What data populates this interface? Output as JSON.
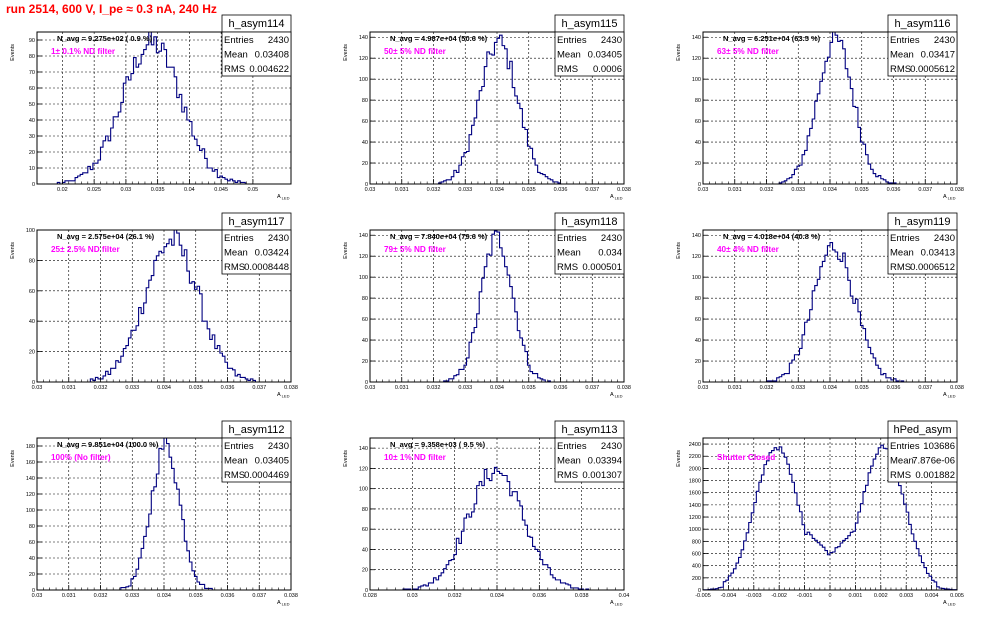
{
  "header": {
    "title": "run 2514,   600 V, I_pe ≈ 0.3 nA, 240 Hz"
  },
  "colors": {
    "title": "#ff0000",
    "hist": "#000080",
    "note": "#ff00ff",
    "grid": "#000000",
    "axis": "#000000"
  },
  "common": {
    "xlabel_main": "A",
    "xlabel_sub": "LED",
    "ylabel": "Events",
    "stat_labels": [
      "Entries",
      "Mean",
      "RMS"
    ]
  },
  "chart_data": [
    {
      "type": "bar",
      "title": "h_asym114",
      "annotation": "N_avg = 9.275e+02 ( 0.9 %)",
      "note": "1± 0.1% ND filter",
      "entries": "2430",
      "mean": "0.03408",
      "rms": "0.004622",
      "xlim": [
        0.016,
        0.056
      ],
      "xticks": [
        "0.02",
        "0.025",
        "0.03",
        "0.035",
        "0.04",
        "0.045",
        "0.05"
      ],
      "ylim": [
        0,
        95
      ],
      "yticks": [
        "0",
        "10",
        "20",
        "30",
        "40",
        "50",
        "60",
        "70",
        "80",
        "90"
      ],
      "dist": {
        "mean": 0.03408,
        "sigma": 0.004622,
        "peak": 88
      },
      "grid": true
    },
    {
      "type": "bar",
      "title": "h_asym115",
      "annotation": "N_avg = 4.987e+04 (50.6 %)",
      "note": "50± 5% ND filter",
      "entries": "2430",
      "mean": "0.03405",
      "rms": "0.0006",
      "xlim": [
        0.03,
        0.038
      ],
      "xticks": [
        "0.03",
        "0.031",
        "0.032",
        "0.033",
        "0.034",
        "0.035",
        "0.036",
        "0.037",
        "0.038"
      ],
      "ylim": [
        0,
        145
      ],
      "yticks": [
        "0",
        "20",
        "40",
        "60",
        "80",
        "100",
        "120",
        "140"
      ],
      "dist": {
        "mean": 0.03405,
        "sigma": 0.0006,
        "peak": 135
      },
      "grid": true
    },
    {
      "type": "bar",
      "title": "h_asym116",
      "annotation": "N_avg = 6.251e+04 (63.5 %)",
      "note": "63± 5% ND filter",
      "entries": "2430",
      "mean": "0.03417",
      "rms": "0.0005612",
      "xlim": [
        0.03,
        0.038
      ],
      "xticks": [
        "0.03",
        "0.031",
        "0.032",
        "0.033",
        "0.034",
        "0.035",
        "0.036",
        "0.037",
        "0.038"
      ],
      "ylim": [
        0,
        145
      ],
      "yticks": [
        "0",
        "20",
        "40",
        "60",
        "80",
        "100",
        "120",
        "140"
      ],
      "dist": {
        "mean": 0.03417,
        "sigma": 0.0005612,
        "peak": 138
      },
      "grid": true
    },
    {
      "type": "bar",
      "title": "h_asym117",
      "annotation": "N_avg = 2.575e+04 (26.1 %)",
      "note": "25± 2.5% ND filter",
      "entries": "2430",
      "mean": "0.03424",
      "rms": "0.0008448",
      "xlim": [
        0.03,
        0.038
      ],
      "xticks": [
        "0.03",
        "0.031",
        "0.032",
        "0.033",
        "0.034",
        "0.035",
        "0.036",
        "0.037",
        "0.038"
      ],
      "ylim": [
        0,
        100
      ],
      "yticks": [
        "0",
        "20",
        "40",
        "60",
        "80",
        "100"
      ],
      "dist": {
        "mean": 0.03424,
        "sigma": 0.0008448,
        "peak": 93
      },
      "grid": true
    },
    {
      "type": "bar",
      "title": "h_asym118",
      "annotation": "N_avg = 7.840e+04 (79.6 %)",
      "note": "79± 5% ND filter",
      "entries": "2430",
      "mean": "0.034",
      "rms": "0.000501",
      "xlim": [
        0.03,
        0.038
      ],
      "xticks": [
        "0.03",
        "0.031",
        "0.032",
        "0.033",
        "0.034",
        "0.035",
        "0.036",
        "0.037",
        "0.038"
      ],
      "ylim": [
        0,
        145
      ],
      "yticks": [
        "0",
        "20",
        "40",
        "60",
        "80",
        "100",
        "120",
        "140"
      ],
      "dist": {
        "mean": 0.034,
        "sigma": 0.000501,
        "peak": 138
      },
      "grid": true
    },
    {
      "type": "bar",
      "title": "h_asym119",
      "annotation": "N_avg = 4.018e+04 (40.8 %)",
      "note": "40± 4% ND filter",
      "entries": "2430",
      "mean": "0.03413",
      "rms": "0.0006512",
      "xlim": [
        0.03,
        0.038
      ],
      "xticks": [
        "0.03",
        "0.031",
        "0.032",
        "0.033",
        "0.034",
        "0.035",
        "0.036",
        "0.037",
        "0.038"
      ],
      "ylim": [
        0,
        145
      ],
      "yticks": [
        "0",
        "20",
        "40",
        "60",
        "80",
        "100",
        "120",
        "140"
      ],
      "dist": {
        "mean": 0.03413,
        "sigma": 0.0006512,
        "peak": 130
      },
      "grid": true
    },
    {
      "type": "bar",
      "title": "h_asym112",
      "annotation": "N_avg = 9.851e+04 (100.0 %)",
      "note": "100% (No filter)",
      "entries": "2430",
      "mean": "0.03405",
      "rms": "0.0004469",
      "xlim": [
        0.03,
        0.038
      ],
      "xticks": [
        "0.03",
        "0.031",
        "0.032",
        "0.033",
        "0.034",
        "0.035",
        "0.036",
        "0.037",
        "0.038"
      ],
      "ylim": [
        0,
        190
      ],
      "yticks": [
        "0",
        "20",
        "40",
        "60",
        "80",
        "100",
        "120",
        "140",
        "160",
        "180"
      ],
      "dist": {
        "mean": 0.03405,
        "sigma": 0.0004469,
        "peak": 182
      },
      "grid": true
    },
    {
      "type": "bar",
      "title": "h_asym113",
      "annotation": "N_avg = 9.358e+03 ( 9.5 %)",
      "note": "10± 1% ND filter",
      "entries": "2430",
      "mean": "0.03394",
      "rms": "0.001307",
      "xlim": [
        0.028,
        0.04
      ],
      "xticks": [
        "0.028",
        "0.03",
        "0.032",
        "0.034",
        "0.036",
        "0.038",
        "0.04"
      ],
      "ylim": [
        0,
        150
      ],
      "yticks": [
        "0",
        "20",
        "40",
        "60",
        "80",
        "100",
        "120",
        "140"
      ],
      "dist": {
        "mean": 0.03394,
        "sigma": 0.001307,
        "peak": 118
      },
      "grid": true
    },
    {
      "type": "bar",
      "title": "hPed_asym",
      "annotation": "",
      "note": "Shutter Closed",
      "entries": "103686",
      "mean": "7.876e-06",
      "rms": "0.001882",
      "xlim": [
        -0.005,
        0.005
      ],
      "xticks": [
        "-0.005",
        "-0.004",
        "-0.003",
        "-0.002",
        "-0.001",
        "0",
        "0.001",
        "0.002",
        "0.003",
        "0.004",
        "0.005"
      ],
      "ylim": [
        0,
        2500
      ],
      "yticks": [
        "0",
        "200",
        "400",
        "600",
        "800",
        "1000",
        "1200",
        "1400",
        "1600",
        "1800",
        "2000",
        "2200",
        "2400"
      ],
      "dist": {
        "bimodal": true,
        "peaks": [
          -0.0021,
          0.0021
        ],
        "sigma": 0.00085,
        "peak": 2350,
        "valley": 580
      },
      "grid": true
    }
  ]
}
